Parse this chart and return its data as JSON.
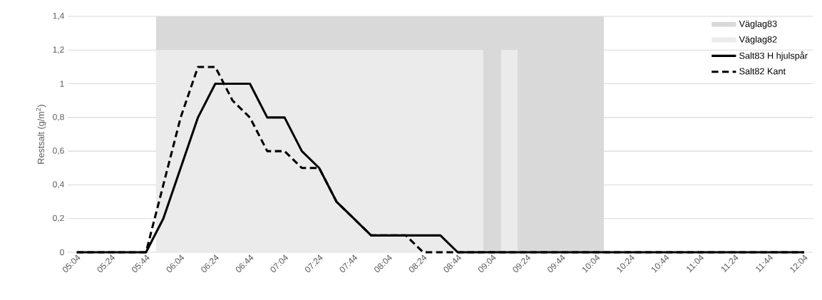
{
  "chart_data": {
    "type": "line",
    "ylabel": "Restsalt (g/m$^{2}$)",
    "x": [
      5.0667,
      5.2333,
      5.4,
      5.5667,
      5.7333,
      5.9,
      6.0667,
      6.2333,
      6.4,
      6.5667,
      6.7333,
      6.9,
      7.0667,
      7.2333,
      7.4,
      7.5667,
      7.7333,
      7.9,
      8.0667,
      8.2333,
      8.4,
      8.5667,
      8.7333,
      8.9,
      9.0667,
      9.2333,
      9.4,
      9.5667,
      9.7333,
      9.9,
      10.0667,
      10.2333,
      10.4,
      10.5667,
      10.7333,
      10.9,
      11.0667,
      11.2333,
      11.4,
      11.5667,
      11.7333,
      11.9,
      12.0667
    ],
    "series": [
      {
        "name": "Väglag83",
        "type": "area",
        "color": "#d9d9d9",
        "x": [
          5.83,
          10.14
        ],
        "values": [
          1.4,
          0
        ]
      },
      {
        "name": "Väglag82",
        "type": "area",
        "color": "#ebebeb",
        "x": [
          5.83,
          8.98,
          9.15,
          9.31
        ],
        "values": [
          1.2,
          0,
          1.2,
          0
        ]
      },
      {
        "name": "Salt83 H hjulspår",
        "color": "#000000",
        "line_style": "solid",
        "values": [
          0,
          0,
          0,
          0,
          0,
          0.2,
          0.5,
          0.8,
          1.0,
          1.0,
          1.0,
          0.8,
          0.8,
          0.6,
          0.5,
          0.3,
          0.2,
          0.1,
          0.1,
          0.1,
          0.1,
          0.1,
          0,
          0,
          0,
          0,
          0,
          0,
          0,
          0,
          0,
          0,
          0,
          0,
          0,
          0,
          0,
          0,
          0,
          0,
          0,
          0,
          0
        ]
      },
      {
        "name": "Salt82 Kant",
        "color": "#000000",
        "line_style": "dashed",
        "values": [
          0,
          0,
          0,
          0,
          0,
          0.4,
          0.8,
          1.1,
          1.1,
          0.9,
          0.8,
          0.6,
          0.6,
          0.5,
          0.5,
          0.3,
          0.2,
          0.1,
          0.1,
          0.1,
          0,
          0,
          0,
          0,
          0,
          0,
          0,
          0,
          0,
          0,
          0,
          0,
          0,
          0,
          0,
          0,
          0,
          0,
          0,
          0,
          0,
          0,
          0
        ]
      }
    ],
    "xlim": [
      4.98,
      12.15
    ],
    "xticks": [
      {
        "value": 5.0667,
        "label": "05:04"
      },
      {
        "value": 5.4,
        "label": "05:24"
      },
      {
        "value": 5.7333,
        "label": "05:44"
      },
      {
        "value": 6.0667,
        "label": "06:04"
      },
      {
        "value": 6.4,
        "label": "06:24"
      },
      {
        "value": 6.7333,
        "label": "06:44"
      },
      {
        "value": 7.0667,
        "label": "07:04"
      },
      {
        "value": 7.4,
        "label": "07:24"
      },
      {
        "value": 7.7333,
        "label": "07:44"
      },
      {
        "value": 8.0667,
        "label": "08:04"
      },
      {
        "value": 8.4,
        "label": "08:24"
      },
      {
        "value": 8.7333,
        "label": "08:44"
      },
      {
        "value": 9.0667,
        "label": "09:04"
      },
      {
        "value": 9.4,
        "label": "09:24"
      },
      {
        "value": 9.7333,
        "label": "09:44"
      },
      {
        "value": 10.0667,
        "label": "10:04"
      },
      {
        "value": 10.4,
        "label": "10:24"
      },
      {
        "value": 10.7333,
        "label": "10:44"
      },
      {
        "value": 11.0667,
        "label": "11:04"
      },
      {
        "value": 11.4,
        "label": "11:24"
      },
      {
        "value": 11.7333,
        "label": "11:44"
      },
      {
        "value": 12.0667,
        "label": "12:04"
      }
    ],
    "ylim": [
      0,
      1.4
    ],
    "yticks": [
      0,
      {
        "value": 0.2,
        "label": "0,2"
      },
      {
        "value": 0.4,
        "label": "0,4"
      },
      {
        "value": 0.6,
        "label": "0,6"
      },
      {
        "value": 0.8,
        "label": "0,8"
      },
      1,
      {
        "value": 1.2,
        "label": "1,2"
      },
      {
        "value": 1.4,
        "label": "1,4"
      }
    ],
    "grid": "y",
    "legend": "top right"
  }
}
